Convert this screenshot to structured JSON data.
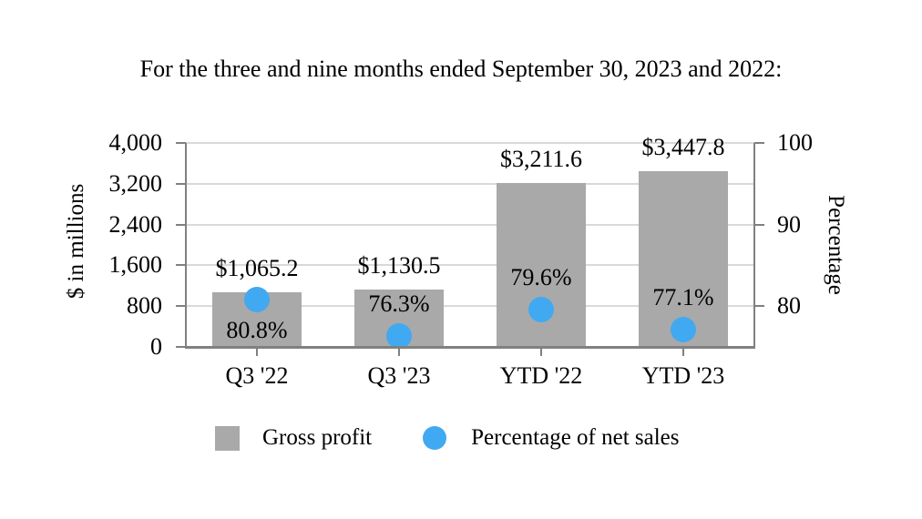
{
  "title": "For the three and nine months ended September 30, 2023 and 2022:",
  "chart_data": {
    "type": "bar",
    "categories": [
      "Q3 '22",
      "Q3 '23",
      "YTD '22",
      "YTD '23"
    ],
    "series": [
      {
        "name": "Gross profit",
        "type": "bar",
        "axis": "left",
        "color": "#a9a9a9",
        "values": [
          1065.2,
          1130.5,
          3211.6,
          3447.8
        ],
        "labels": [
          "$1,065.2",
          "$1,130.5",
          "$3,211.6",
          "$3,447.8"
        ]
      },
      {
        "name": "Percentage of net sales",
        "type": "scatter",
        "axis": "right",
        "color": "#41a9f1",
        "values": [
          80.8,
          76.3,
          79.6,
          77.1
        ],
        "labels": [
          "80.8%",
          "76.3%",
          "79.6%",
          "77.1%"
        ],
        "label_position": [
          "below",
          "above",
          "above",
          "above"
        ]
      }
    ],
    "left_axis": {
      "label": "$ in millions",
      "range": [
        0,
        4000
      ],
      "tick_values": [
        0,
        800,
        1600,
        2400,
        3200,
        4000
      ],
      "tick_labels": [
        "0",
        "800",
        "1,600",
        "2,400",
        "3,200",
        "4,000"
      ]
    },
    "right_axis": {
      "label": "Percentage",
      "range": [
        75,
        100
      ],
      "tick_values": [
        80,
        90,
        100
      ],
      "tick_labels": [
        "80",
        "90",
        "100"
      ]
    },
    "grid": true,
    "legend_position": "bottom",
    "colors": {
      "bar": "#a9a9a9",
      "marker": "#41a9f1",
      "gridline": "#d9d9d9",
      "axis_line": "#808080",
      "text": "#000000"
    }
  }
}
